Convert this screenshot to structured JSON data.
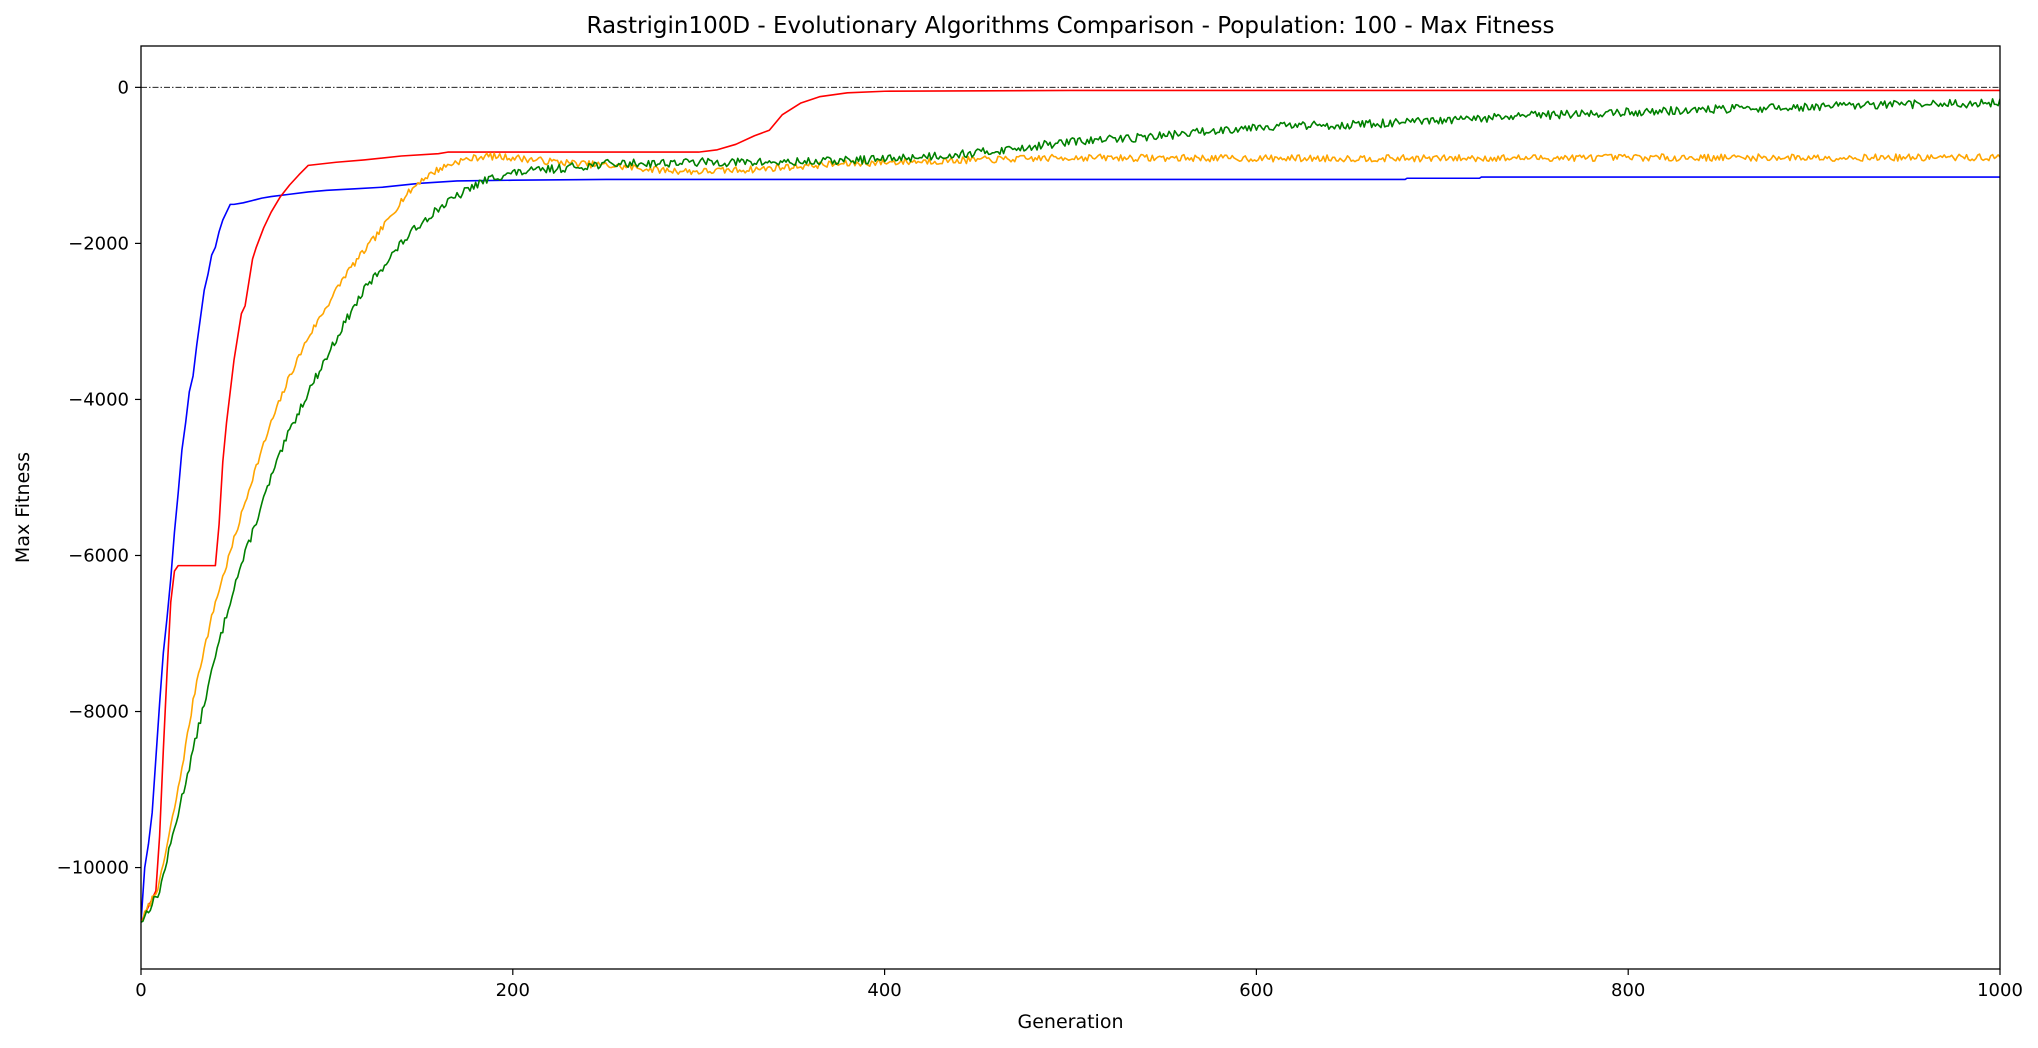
{
  "chart_data": {
    "type": "line",
    "title": "Rastrigin100D - Evolutionary Algorithms Comparison - Population: 100 - Max Fitness",
    "xlabel": "Generation",
    "ylabel": "Max Fitness",
    "xlim": [
      0,
      1000
    ],
    "ylim": [
      -11300,
      530
    ],
    "xticks": [
      0,
      200,
      400,
      600,
      800,
      1000
    ],
    "xtick_labels": [
      "0",
      "200",
      "400",
      "600",
      "800",
      "1000"
    ],
    "yticks": [
      0,
      -2000,
      -4000,
      -6000,
      -8000,
      -10000
    ],
    "ytick_labels": [
      "0",
      "−2000",
      "−4000",
      "−6000",
      "−8000",
      "−10000"
    ],
    "grid": false,
    "reference_line": {
      "y": 0,
      "color": "#000000",
      "style": "dash-dot"
    },
    "series": [
      {
        "color": "#0000ff",
        "style": "steps",
        "points": [
          [
            0,
            -10700
          ],
          [
            2,
            -10000
          ],
          [
            4,
            -9700
          ],
          [
            6,
            -9300
          ],
          [
            8,
            -8600
          ],
          [
            10,
            -7900
          ],
          [
            12,
            -7250
          ],
          [
            14,
            -6800
          ],
          [
            16,
            -6300
          ],
          [
            18,
            -5700
          ],
          [
            20,
            -5200
          ],
          [
            22,
            -4650
          ],
          [
            24,
            -4300
          ],
          [
            26,
            -3900
          ],
          [
            28,
            -3700
          ],
          [
            30,
            -3300
          ],
          [
            32,
            -2950
          ],
          [
            34,
            -2600
          ],
          [
            36,
            -2400
          ],
          [
            38,
            -2150
          ],
          [
            40,
            -2050
          ],
          [
            42,
            -1850
          ],
          [
            44,
            -1700
          ],
          [
            46,
            -1600
          ],
          [
            48,
            -1500
          ],
          [
            50,
            -1500
          ],
          [
            55,
            -1480
          ],
          [
            60,
            -1450
          ],
          [
            65,
            -1420
          ],
          [
            70,
            -1400
          ],
          [
            80,
            -1370
          ],
          [
            90,
            -1340
          ],
          [
            100,
            -1320
          ],
          [
            115,
            -1300
          ],
          [
            130,
            -1280
          ],
          [
            150,
            -1230
          ],
          [
            170,
            -1200
          ],
          [
            200,
            -1190
          ],
          [
            250,
            -1180
          ],
          [
            300,
            -1180
          ],
          [
            400,
            -1180
          ],
          [
            500,
            -1180
          ],
          [
            600,
            -1180
          ],
          [
            680,
            -1180
          ],
          [
            681,
            -1165
          ],
          [
            720,
            -1165
          ],
          [
            721,
            -1150
          ],
          [
            1000,
            -1150
          ]
        ]
      },
      {
        "color": "#ff0000",
        "style": "steps",
        "points": [
          [
            0,
            -10700
          ],
          [
            4,
            -10500
          ],
          [
            8,
            -10300
          ],
          [
            10,
            -9600
          ],
          [
            12,
            -8500
          ],
          [
            14,
            -7500
          ],
          [
            16,
            -6600
          ],
          [
            18,
            -6200
          ],
          [
            20,
            -6130
          ],
          [
            40,
            -6130
          ],
          [
            42,
            -5600
          ],
          [
            44,
            -4800
          ],
          [
            46,
            -4300
          ],
          [
            48,
            -3900
          ],
          [
            50,
            -3500
          ],
          [
            52,
            -3200
          ],
          [
            54,
            -2900
          ],
          [
            56,
            -2800
          ],
          [
            58,
            -2500
          ],
          [
            60,
            -2200
          ],
          [
            62,
            -2050
          ],
          [
            66,
            -1800
          ],
          [
            70,
            -1600
          ],
          [
            75,
            -1400
          ],
          [
            80,
            -1250
          ],
          [
            85,
            -1120
          ],
          [
            90,
            -1000
          ],
          [
            105,
            -960
          ],
          [
            120,
            -930
          ],
          [
            140,
            -880
          ],
          [
            160,
            -850
          ],
          [
            165,
            -830
          ],
          [
            200,
            -830
          ],
          [
            250,
            -830
          ],
          [
            300,
            -830
          ],
          [
            310,
            -800
          ],
          [
            320,
            -730
          ],
          [
            330,
            -620
          ],
          [
            338,
            -550
          ],
          [
            345,
            -350
          ],
          [
            355,
            -200
          ],
          [
            365,
            -120
          ],
          [
            380,
            -70
          ],
          [
            400,
            -50
          ],
          [
            500,
            -40
          ],
          [
            600,
            -40
          ],
          [
            700,
            -40
          ],
          [
            800,
            -40
          ],
          [
            900,
            -40
          ],
          [
            1000,
            -40
          ]
        ]
      },
      {
        "color": "#ffa500",
        "style": "noisy",
        "noise": 45,
        "seed": 7,
        "points": [
          [
            0,
            -10700
          ],
          [
            10,
            -10200
          ],
          [
            20,
            -9000
          ],
          [
            30,
            -7600
          ],
          [
            40,
            -6600
          ],
          [
            50,
            -5800
          ],
          [
            60,
            -5000
          ],
          [
            70,
            -4300
          ],
          [
            80,
            -3700
          ],
          [
            90,
            -3200
          ],
          [
            100,
            -2800
          ],
          [
            110,
            -2400
          ],
          [
            120,
            -2100
          ],
          [
            130,
            -1800
          ],
          [
            140,
            -1450
          ],
          [
            150,
            -1200
          ],
          [
            160,
            -1050
          ],
          [
            170,
            -950
          ],
          [
            185,
            -880
          ],
          [
            200,
            -900
          ],
          [
            220,
            -950
          ],
          [
            250,
            -1000
          ],
          [
            280,
            -1060
          ],
          [
            300,
            -1080
          ],
          [
            330,
            -1050
          ],
          [
            360,
            -1000
          ],
          [
            400,
            -960
          ],
          [
            450,
            -930
          ],
          [
            500,
            -900
          ],
          [
            600,
            -910
          ],
          [
            700,
            -910
          ],
          [
            800,
            -900
          ],
          [
            900,
            -900
          ],
          [
            1000,
            -900
          ]
        ]
      },
      {
        "color": "#008000",
        "style": "noisy",
        "noise": 55,
        "seed": 13,
        "points": [
          [
            0,
            -10700
          ],
          [
            10,
            -10300
          ],
          [
            20,
            -9300
          ],
          [
            30,
            -8300
          ],
          [
            40,
            -7300
          ],
          [
            50,
            -6400
          ],
          [
            60,
            -5700
          ],
          [
            70,
            -5000
          ],
          [
            80,
            -4400
          ],
          [
            90,
            -3900
          ],
          [
            100,
            -3450
          ],
          [
            110,
            -3000
          ],
          [
            120,
            -2600
          ],
          [
            130,
            -2300
          ],
          [
            140,
            -2000
          ],
          [
            150,
            -1750
          ],
          [
            160,
            -1550
          ],
          [
            170,
            -1400
          ],
          [
            180,
            -1250
          ],
          [
            190,
            -1150
          ],
          [
            200,
            -1100
          ],
          [
            220,
            -1050
          ],
          [
            250,
            -980
          ],
          [
            300,
            -960
          ],
          [
            350,
            -960
          ],
          [
            400,
            -920
          ],
          [
            450,
            -840
          ],
          [
            500,
            -700
          ],
          [
            550,
            -620
          ],
          [
            600,
            -500
          ],
          [
            650,
            -480
          ],
          [
            700,
            -430
          ],
          [
            750,
            -360
          ],
          [
            800,
            -320
          ],
          [
            850,
            -280
          ],
          [
            900,
            -250
          ],
          [
            950,
            -220
          ],
          [
            1000,
            -200
          ]
        ]
      }
    ]
  }
}
